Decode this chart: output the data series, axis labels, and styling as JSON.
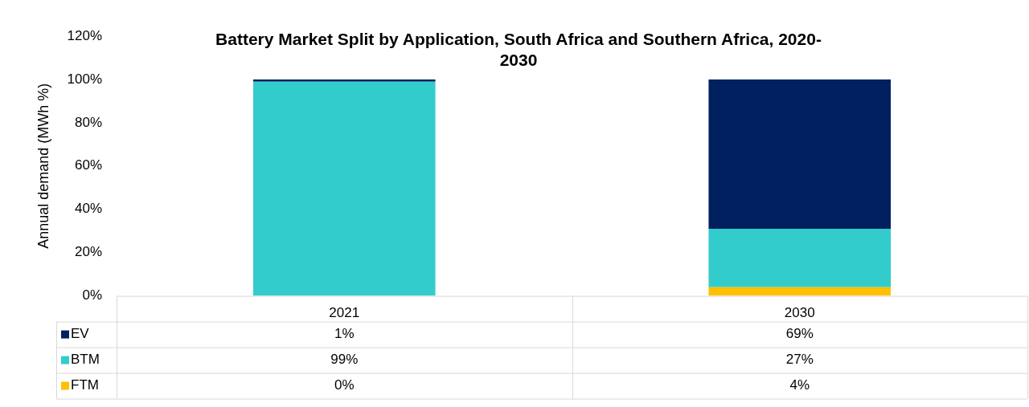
{
  "chart_data": {
    "type": "bar",
    "title": "Battery Market Split by Application, South Africa and Southern Africa, 2020-2030",
    "ylabel": "Annual demand (MWh %)",
    "categories": [
      "2021",
      "2030"
    ],
    "stacked": true,
    "series": [
      {
        "name": "FTM",
        "color": "#ffc000",
        "values": [
          0,
          4
        ],
        "value_labels": [
          "0%",
          "4%"
        ]
      },
      {
        "name": "BTM",
        "color": "#33cccc",
        "values": [
          99,
          27
        ],
        "value_labels": [
          "99%",
          "27%"
        ]
      },
      {
        "name": "EV",
        "color": "#002060",
        "values": [
          1,
          69
        ],
        "value_labels": [
          "1%",
          "69%"
        ]
      }
    ],
    "ylim": [
      0,
      120
    ],
    "yticks": [
      {
        "value": 0,
        "label": "0%"
      },
      {
        "value": 20,
        "label": "20%"
      },
      {
        "value": 40,
        "label": "40%"
      },
      {
        "value": 60,
        "label": "60%"
      },
      {
        "value": 80,
        "label": "80%"
      },
      {
        "value": 100,
        "label": "100%"
      },
      {
        "value": 120,
        "label": "120%"
      }
    ],
    "grid": false,
    "legend": "bottom",
    "data_labels": true
  }
}
